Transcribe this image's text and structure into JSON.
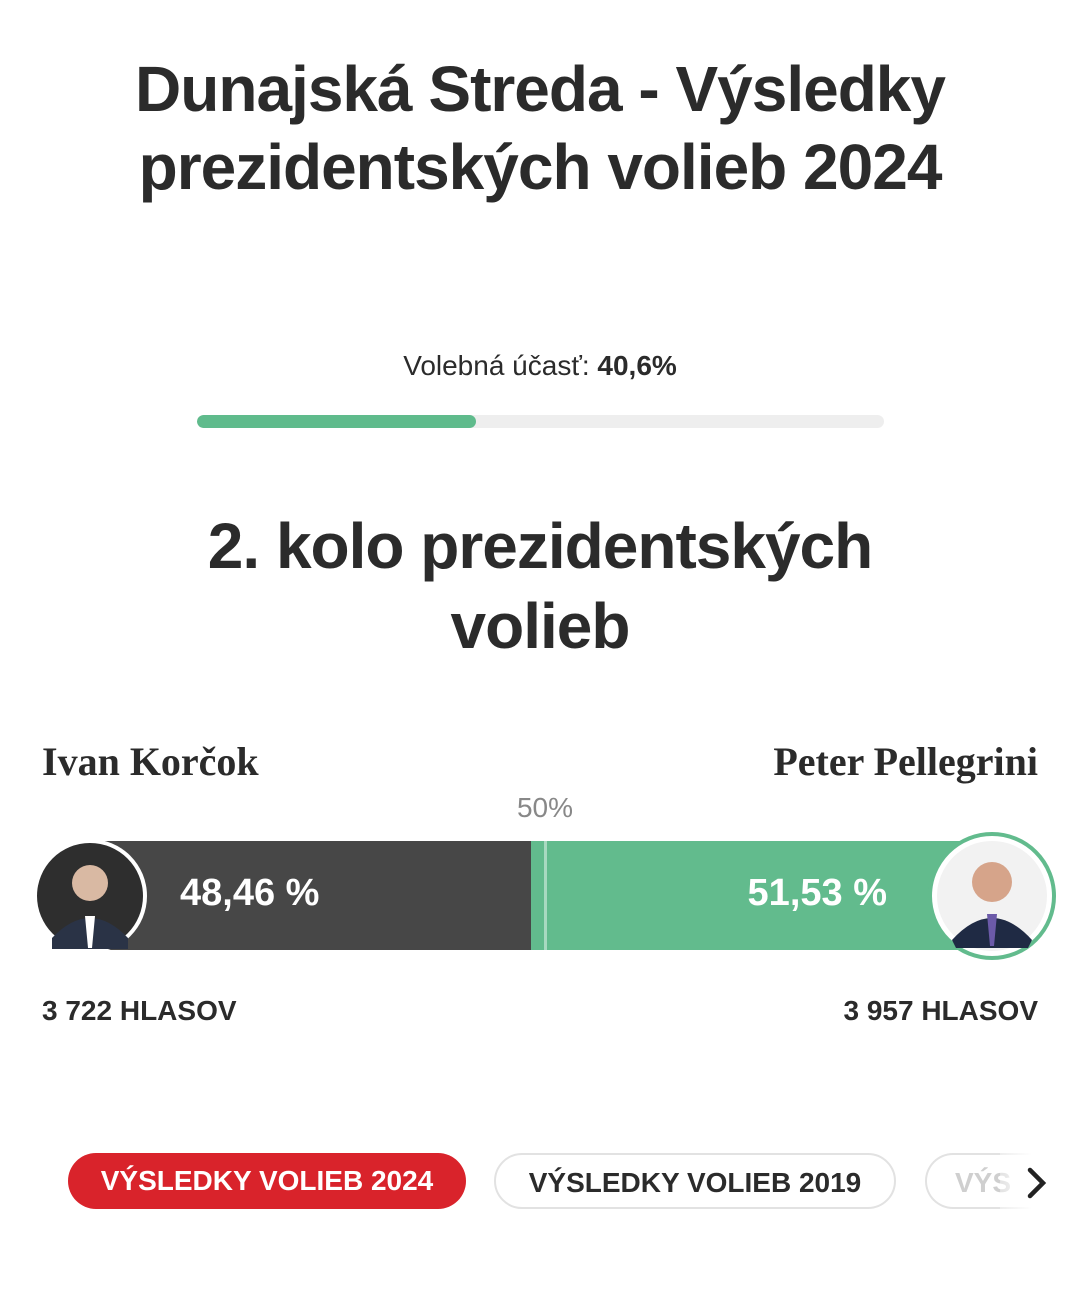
{
  "header": {
    "title_lines": [
      "Dunajská Streda - Výsledky",
      "prezidentských volieb 2024"
    ]
  },
  "turnout": {
    "label": "Volebná účasť:",
    "value": 40.6,
    "value_label": "40,6%"
  },
  "round": {
    "title_lines": [
      "2. kolo prezidentských",
      "volieb"
    ],
    "midpoint": {
      "value": 50,
      "label": "50%"
    },
    "candidates": [
      {
        "name": "Ivan Korčok",
        "value": 48.46,
        "value_label": "48,46 %",
        "votes": "3 722 HLASOV",
        "color": "#474747"
      },
      {
        "name": "Peter Pellegrini",
        "value": 51.53,
        "value_label": "51,53 %",
        "votes": "3 957 HLASOV",
        "color": "#62bb8d"
      }
    ]
  },
  "tabs": [
    "VÝSLEDKY VOLIEB 2024",
    "VÝSLEDKY VOLIEB 2019",
    "VÝS"
  ]
}
